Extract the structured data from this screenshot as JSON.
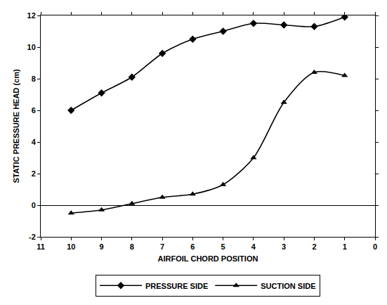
{
  "chart_data": {
    "type": "line",
    "x_label": "AIRFOIL CHORD POSITION",
    "y_label": "STATIC PRESSURE HEAD (cm)",
    "x": [
      10,
      9,
      8,
      7,
      6,
      5,
      4,
      3,
      2,
      1
    ],
    "series": [
      {
        "name": "PRESSURE SIDE",
        "color": "#000000",
        "marker": "diamond",
        "line_style": "smooth",
        "values": [
          6.0,
          7.1,
          8.1,
          9.6,
          10.5,
          11.0,
          11.5,
          11.4,
          11.3,
          11.9
        ]
      },
      {
        "name": "SUCTION SIDE",
        "color": "#000000",
        "marker": "triangle-up",
        "line_style": "smooth",
        "values": [
          -0.5,
          -0.3,
          0.1,
          0.5,
          0.7,
          1.3,
          3.0,
          6.5,
          8.4,
          8.2
        ]
      }
    ],
    "xlim": [
      11,
      0
    ],
    "xticks": [
      11,
      10,
      9,
      8,
      7,
      6,
      5,
      4,
      3,
      2,
      1,
      0
    ],
    "ylim": [
      -2,
      12
    ],
    "yticks": [
      -2,
      0,
      2,
      4,
      6,
      8,
      10,
      12
    ],
    "grid": false,
    "legend": "bottom"
  }
}
